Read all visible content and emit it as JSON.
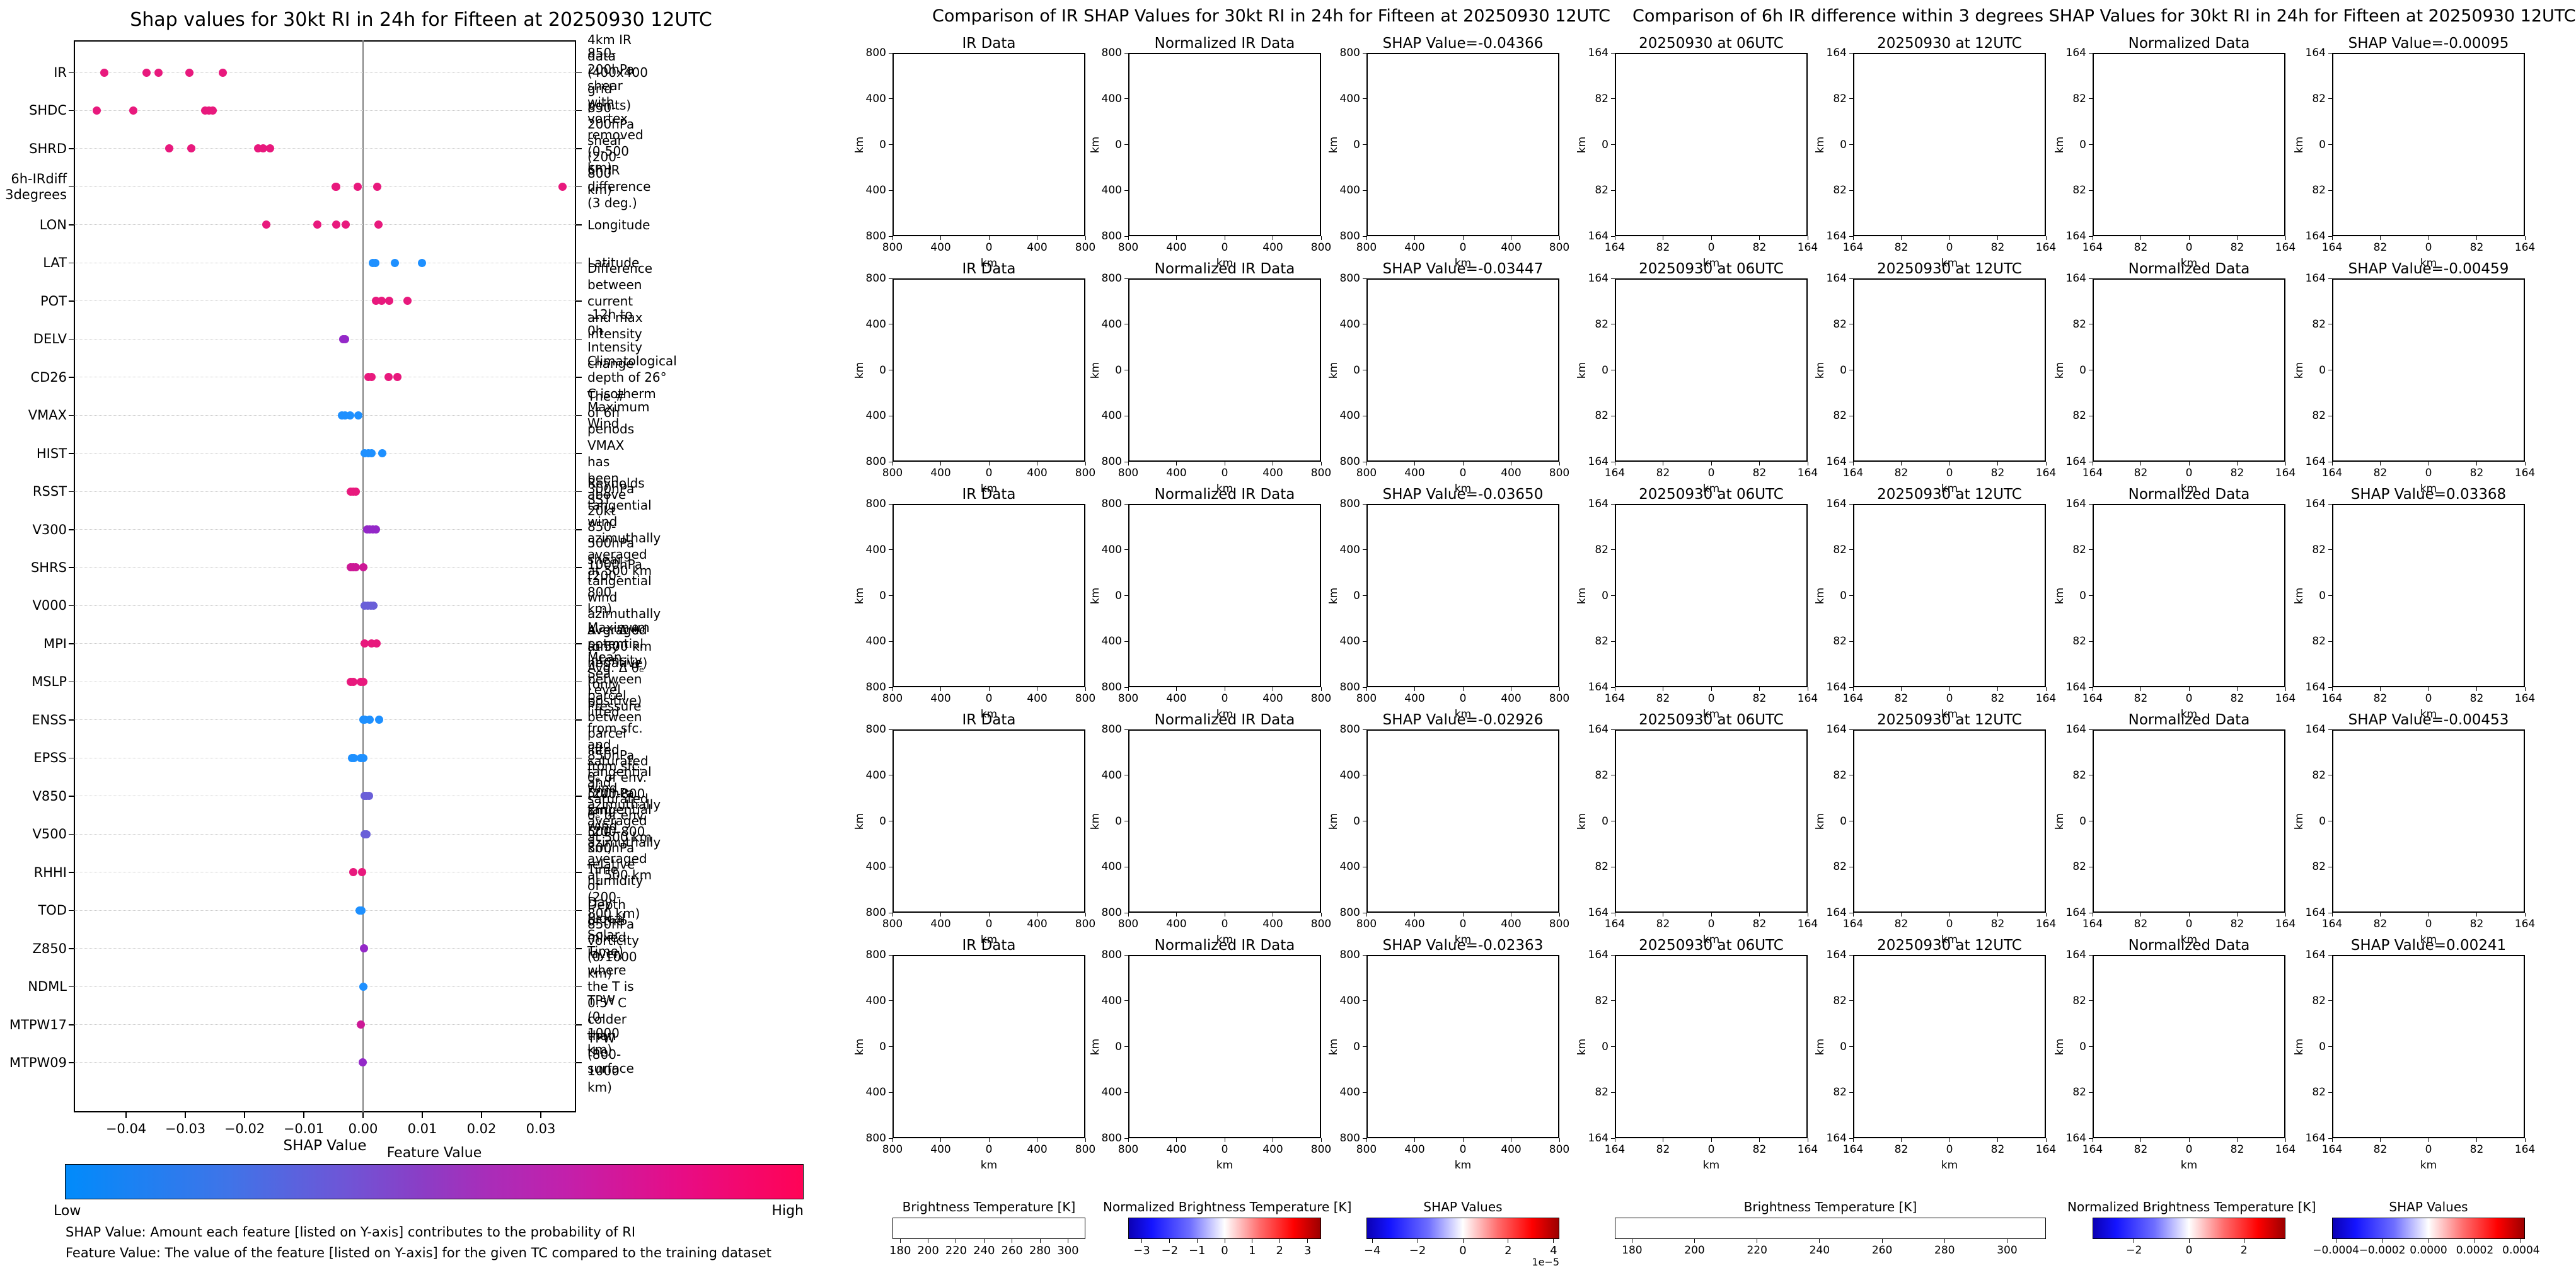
{
  "footnotes": [
    "SHAP Value: Amount each feature [listed on Y-axis] contributes to the probability of RI",
    "Feature Value: The value of the feature [listed on Y-axis] for the given TC compared to the training dataset"
  ],
  "chart_data": {
    "type": "scatter",
    "title": "Shap values for 30kt RI in 24h for Fifteen at 20250930 12UTC",
    "xlabel": "SHAP Value",
    "xlim": [
      -0.049,
      0.036
    ],
    "grid": "dotted-horizontal",
    "x_ticks": [
      {
        "label": "−0.04",
        "v": -0.04
      },
      {
        "label": "−0.03",
        "v": -0.03
      },
      {
        "label": "−0.02",
        "v": -0.02
      },
      {
        "label": "−0.01",
        "v": -0.01
      },
      {
        "label": "0.00",
        "v": 0.0
      },
      {
        "label": "0.01",
        "v": 0.01
      },
      {
        "label": "0.02",
        "v": 0.02
      },
      {
        "label": "0.03",
        "v": 0.03
      }
    ],
    "colorbar": {
      "title": "Feature Value",
      "low_label": "Low",
      "high_label": "High",
      "low_color": "#018bfb",
      "high_color": "#ff0356"
    },
    "features": [
      {
        "name": "IR",
        "desc": "4km IR data (400x400 grid points)",
        "color": "#e8197d",
        "values": [
          -0.04366,
          -0.0365,
          -0.03447,
          -0.02926,
          -0.02363
        ]
      },
      {
        "name": "SHDC",
        "desc": "850-200hPa shear with\nvortex removed (0-500 km)",
        "color": "#e8197d",
        "values": [
          -0.045,
          -0.0388,
          -0.0266,
          -0.026,
          -0.0254
        ]
      },
      {
        "name": "SHRD",
        "desc": "850-200hPa shear (200-800 km)",
        "color": "#e8197d",
        "values": [
          -0.0327,
          -0.029,
          -0.0177,
          -0.0169,
          -0.0157
        ]
      },
      {
        "name": "6h-IRdiff\n3degrees",
        "desc": "6h IR difference (3 deg.)",
        "color": "#e8197d",
        "values": [
          -0.00459,
          -0.00453,
          -0.00095,
          0.00241,
          0.03368
        ]
      },
      {
        "name": "LON",
        "desc": "Longitude",
        "color": "#e8197d",
        "values": [
          -0.0163,
          -0.0077,
          -0.0045,
          -0.0029,
          0.0026
        ]
      },
      {
        "name": "LAT",
        "desc": "Latitude",
        "color": "#1e90ff",
        "values": [
          0.0016,
          0.0021,
          0.0054,
          0.0099
        ]
      },
      {
        "name": "POT",
        "desc": "Difference between current and max intensity",
        "color": "#e8197d",
        "values": [
          0.0022,
          0.0031,
          0.0044,
          0.0075
        ]
      },
      {
        "name": "DELV",
        "desc": "-12h to 0h Intensity change",
        "color": "#9428c8",
        "values": [
          -0.0033,
          -0.003
        ]
      },
      {
        "name": "CD26",
        "desc": "Climatological depth of 26° C isotherm",
        "color": "#e8197d",
        "values": [
          0.0009,
          0.0014,
          0.0043,
          0.0058
        ]
      },
      {
        "name": "VMAX",
        "desc": "Maximum Wind",
        "color": "#1e90ff",
        "values": [
          -0.0036,
          -0.003,
          -0.0022,
          -0.0008
        ]
      },
      {
        "name": "HIST",
        "desc": "The # of 6h periods VMAX has been above 20kt",
        "color": "#1e90ff",
        "values": [
          0.0003,
          0.0009,
          0.0014,
          0.0032
        ]
      },
      {
        "name": "RSST",
        "desc": "Reynolds SST",
        "color": "#e8197d",
        "values": [
          -0.0021,
          -0.0017,
          -0.0012
        ]
      },
      {
        "name": "V300",
        "desc": "300hPa tangential wind azimuthally\naveraged at 500 km",
        "color": "#9428c8",
        "values": [
          0.0007,
          0.0011,
          0.0017,
          0.0022
        ]
      },
      {
        "name": "SHRS",
        "desc": "850-500hPa shear (200-800 km)",
        "color": "#cc1896",
        "values": [
          -0.0021,
          -0.0016,
          -0.0012,
          0.0001
        ]
      },
      {
        "name": "V000",
        "desc": "1000hPa tangential wind azimuthally\naveraged at 500 km",
        "color": "#6a5fd8",
        "values": [
          0.0003,
          0.0008,
          0.0013,
          0.0018
        ]
      },
      {
        "name": "MPI",
        "desc": "Maximum potential intensity",
        "color": "#e8197d",
        "values": [
          0.0003,
          0.0014,
          0.0023
        ]
      },
      {
        "name": "MSLP",
        "desc": "Mean Sea Level Pressure",
        "color": "#e8197d",
        "values": [
          -0.0021,
          -0.0017,
          -0.0004,
          0.0
        ]
      },
      {
        "name": "ENSS",
        "desc": "Avg. Δ θₑ (only negative) between parcel lifted\nfrom sfc. and saturated θₑ of env. (200-800 km)",
        "color": "#1e90ff",
        "values": [
          0.0,
          0.0003,
          0.0011,
          0.0027
        ]
      },
      {
        "name": "EPSS",
        "desc": "Avg. Δ θₑ (only positive) between parcel lifted\nfrom sfc. and saturated θₑ of env. (200-800 km)",
        "color": "#1e90ff",
        "values": [
          -0.0019,
          -0.0015,
          -0.0004,
          0.0
        ]
      },
      {
        "name": "V850",
        "desc": "850hPa tangential wind azimuthally\naveraged at 500 km",
        "color": "#6a5fd8",
        "values": [
          0.0003,
          0.0006,
          0.001
        ]
      },
      {
        "name": "V500",
        "desc": "500hPa tangential wind azimuthally\naveraged at 500 km",
        "color": "#6a5fd8",
        "values": [
          0.0003,
          0.0006
        ]
      },
      {
        "name": "RHHI",
        "desc": "500-300hPa relative humidity (200-800 km)",
        "color": "#e8197d",
        "values": [
          -0.0017,
          -0.0002
        ]
      },
      {
        "name": "TOD",
        "desc": "Time of Day (Local Solar Time)",
        "color": "#1e90ff",
        "values": [
          -0.0006,
          -0.0003
        ]
      },
      {
        "name": "Z850",
        "desc": "850hPa vorticity (0-1000 km)",
        "color": "#9428c8",
        "values": [
          0.0002
        ]
      },
      {
        "name": "NDML",
        "desc": "Depth of the mixed layer,\nwhere the T is 0.5° C colder than the surface",
        "color": "#1e90ff",
        "values": [
          0.0
        ]
      },
      {
        "name": "MTPW17",
        "desc": "TPW (0-1000 km)",
        "color": "#cc1896",
        "values": [
          -0.0004
        ]
      },
      {
        "name": "MTPW09",
        "desc": "TPW (800-1000 km)",
        "color": "#9428c8",
        "values": [
          -0.0001
        ]
      }
    ]
  },
  "middle": {
    "title": "Comparison of IR SHAP Values for 30kt RI in 24h for Fifteen at 20250930 12UTC",
    "row_headers": [
      "IR Data",
      "Normalized IR Data"
    ],
    "rows": [
      {
        "shap_label": "SHAP Value=-0.04366"
      },
      {
        "shap_label": "SHAP Value=-0.03447"
      },
      {
        "shap_label": "SHAP Value=-0.03650"
      },
      {
        "shap_label": "SHAP Value=-0.02926"
      },
      {
        "shap_label": "SHAP Value=-0.02363"
      }
    ],
    "shap_values": [
      -0.04366,
      -0.03447,
      -0.0365,
      -0.02926,
      -0.02363
    ],
    "x_ticks": [
      "800",
      "400",
      "0",
      "400",
      "800"
    ],
    "y_ticks": [
      "800",
      "400",
      "0",
      "400",
      "800"
    ],
    "axis_unit": "km",
    "colorbars": [
      {
        "title": "Brightness Temperature [K]",
        "style": "grad-ir",
        "ticks": [
          {
            "label": "180",
            "f": 0.04
          },
          {
            "label": "200",
            "f": 0.185
          },
          {
            "label": "220",
            "f": 0.33
          },
          {
            "label": "240",
            "f": 0.475
          },
          {
            "label": "260",
            "f": 0.62
          },
          {
            "label": "280",
            "f": 0.765
          },
          {
            "label": "300",
            "f": 0.91
          }
        ]
      },
      {
        "title": "Normalized Brightness Temperature [K]",
        "style": "grad-seismic",
        "ticks": [
          {
            "label": "−3",
            "f": 0.07
          },
          {
            "label": "−2",
            "f": 0.215
          },
          {
            "label": "−1",
            "f": 0.357
          },
          {
            "label": "0",
            "f": 0.5
          },
          {
            "label": "1",
            "f": 0.643
          },
          {
            "label": "2",
            "f": 0.785
          },
          {
            "label": "3",
            "f": 0.93
          }
        ]
      },
      {
        "title": "SHAP Values",
        "style": "grad-seismic",
        "offset_label": "1e−5",
        "ticks": [
          {
            "label": "−4",
            "f": 0.03
          },
          {
            "label": "−2",
            "f": 0.265
          },
          {
            "label": "0",
            "f": 0.5
          },
          {
            "label": "2",
            "f": 0.735
          },
          {
            "label": "4",
            "f": 0.97
          }
        ]
      }
    ]
  },
  "right": {
    "title": "Comparison of 6h IR difference within 3 degrees SHAP Values for 30kt RI in 24h for Fifteen at 20250930 12UTC",
    "row_headers": [
      "20250930 at 06UTC",
      "20250930 at 12UTC",
      "Normalized Data"
    ],
    "rows": [
      {
        "shap_label": "SHAP Value=-0.00095"
      },
      {
        "shap_label": "SHAP Value=-0.00459"
      },
      {
        "shap_label": "SHAP Value=0.03368"
      },
      {
        "shap_label": "SHAP Value=-0.00453"
      },
      {
        "shap_label": "SHAP Value=0.00241"
      }
    ],
    "shap_values": [
      -0.00095,
      -0.00459,
      0.03368,
      -0.00453,
      0.00241
    ],
    "x_ticks": [
      "164",
      "82",
      "0",
      "82",
      "164"
    ],
    "y_ticks": [
      "164",
      "82",
      "0",
      "82",
      "164"
    ],
    "axis_unit": "km",
    "colorbars": [
      {
        "title": "Brightness Temperature [K]",
        "style": "grad-ir",
        "ticks": [
          {
            "label": "180",
            "f": 0.04
          },
          {
            "label": "200",
            "f": 0.185
          },
          {
            "label": "220",
            "f": 0.33
          },
          {
            "label": "240",
            "f": 0.475
          },
          {
            "label": "260",
            "f": 0.62
          },
          {
            "label": "280",
            "f": 0.765
          },
          {
            "label": "300",
            "f": 0.91
          }
        ]
      },
      {
        "title": "Normalized Brightness Temperature [K]",
        "style": "grad-seismic",
        "ticks": [
          {
            "label": "−2",
            "f": 0.215
          },
          {
            "label": "0",
            "f": 0.5
          },
          {
            "label": "2",
            "f": 0.785
          }
        ]
      },
      {
        "title": "SHAP Values",
        "style": "grad-seismic",
        "ticks": [
          {
            "label": "−0.0004",
            "f": 0.02
          },
          {
            "label": "−0.0002",
            "f": 0.26
          },
          {
            "label": "0.0000",
            "f": 0.5
          },
          {
            "label": "0.0002",
            "f": 0.74
          },
          {
            "label": "0.0004",
            "f": 0.98
          }
        ]
      }
    ]
  }
}
